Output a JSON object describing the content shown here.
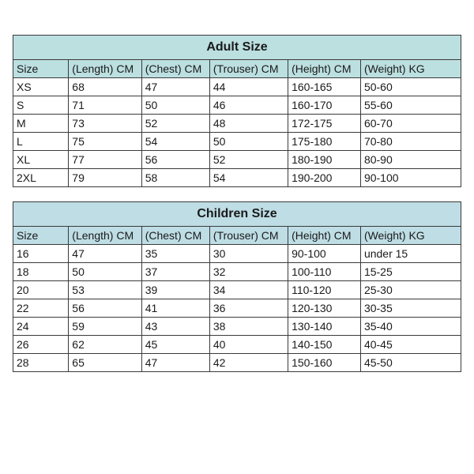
{
  "adult": {
    "title": "Adult Size",
    "title_fontsize": 16,
    "header_bg": "#bcdfe0",
    "border_color": "#3a3a3a",
    "columns": [
      "Size",
      "(Length) CM",
      "(Chest) CM",
      "(Trouser) CM",
      "(Height) CM",
      "(Weight) KG"
    ],
    "col_widths_pct": [
      12.4,
      16.3,
      15.2,
      17.5,
      16.2,
      22.4
    ],
    "rows": [
      [
        "XS",
        "68",
        "47",
        "44",
        "160-165",
        "50-60"
      ],
      [
        "S",
        "71",
        "50",
        "46",
        "160-170",
        "55-60"
      ],
      [
        "M",
        "73",
        "52",
        "48",
        "172-175",
        "60-70"
      ],
      [
        "L",
        "75",
        "54",
        "50",
        "175-180",
        "70-80"
      ],
      [
        "XL",
        "77",
        "56",
        "52",
        "180-190",
        "80-90"
      ],
      [
        "2XL",
        "79",
        "58",
        "54",
        "190-200",
        "90-100"
      ]
    ]
  },
  "children": {
    "title": "Children Size",
    "title_fontsize": 16,
    "header_bg": "#bedde5",
    "border_color": "#3a3a3a",
    "columns": [
      "Size",
      "(Length) CM",
      "(Chest) CM",
      "(Trouser) CM",
      "(Height) CM",
      "(Weight) KG"
    ],
    "col_widths_pct": [
      12.4,
      16.3,
      15.2,
      17.5,
      16.2,
      22.4
    ],
    "rows": [
      [
        "16",
        "47",
        "35",
        "30",
        "90-100",
        "under 15"
      ],
      [
        "18",
        "50",
        "37",
        "32",
        "100-110",
        "15-25"
      ],
      [
        "20",
        "53",
        "39",
        "34",
        "110-120",
        "25-30"
      ],
      [
        "22",
        "56",
        "41",
        "36",
        "120-130",
        "30-35"
      ],
      [
        "24",
        "59",
        "43",
        "38",
        "130-140",
        "35-40"
      ],
      [
        "26",
        "62",
        "45",
        "40",
        "140-150",
        "40-45"
      ],
      [
        "28",
        "65",
        "47",
        "42",
        "150-160",
        "45-50"
      ]
    ]
  },
  "body_fontsize": 14,
  "background_color": "#ffffff"
}
